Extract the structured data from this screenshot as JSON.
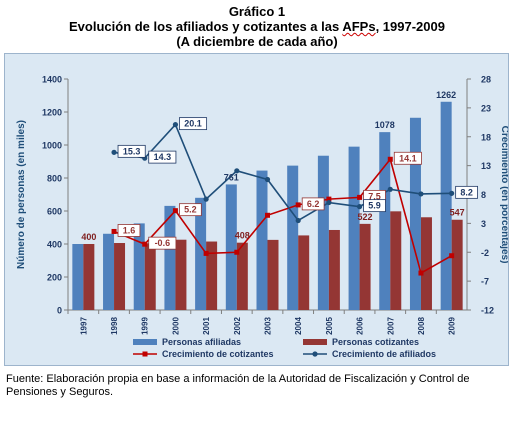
{
  "title_line1": "Gráfico 1",
  "title_line2_a": "Evolución de los afiliados y cotizantes a las ",
  "title_line2_b": "AFPs",
  "title_line2_c": ", 1997-2009",
  "title_line3": "(A diciembre de cada año)",
  "source": "Fuente: Elaboración propia en base a información de la Autoridad de Fiscalización y Control de Pensiones y Seguros.",
  "chart_data": {
    "type": "bar+line",
    "categories": [
      "1997",
      "1998",
      "1999",
      "2000",
      "2001",
      "2002",
      "2003",
      "2004",
      "2005",
      "2006",
      "2007",
      "2008",
      "2009"
    ],
    "bar_series": [
      {
        "name": "Personas afiliadas",
        "color": "#4f81bd",
        "values": [
          400,
          462,
          525,
          631,
          680,
          761,
          845,
          875,
          935,
          990,
          1078,
          1165,
          1262
        ]
      },
      {
        "name": "Personas cotizantes",
        "color": "#943634",
        "values": [
          400,
          406,
          404,
          426,
          415,
          408,
          425,
          452,
          485,
          522,
          598,
          562,
          547
        ]
      }
    ],
    "line_series": [
      {
        "name": "Crecimiento de cotizantes",
        "color": "#c00000",
        "values": [
          null,
          1.6,
          -0.6,
          5.2,
          -2.2,
          -2.0,
          4.4,
          6.2,
          7.2,
          7.5,
          14.1,
          -5.6,
          -2.6
        ]
      },
      {
        "name": "Crecimiento de afiliados",
        "color": "#1f4e79",
        "values": [
          null,
          15.3,
          14.3,
          20.1,
          7.2,
          12.1,
          10.6,
          3.5,
          6.6,
          5.9,
          8.9,
          8.1,
          8.2
        ]
      }
    ],
    "bar_labels": [
      {
        "index": 0,
        "series": 1,
        "text": "400"
      },
      {
        "index": 5,
        "series": 1,
        "text": "408"
      },
      {
        "index": 5,
        "series": 0,
        "text": "761"
      },
      {
        "index": 9,
        "series": 1,
        "text": "522"
      },
      {
        "index": 10,
        "series": 0,
        "text": "1078"
      },
      {
        "index": 12,
        "series": 0,
        "text": "1262"
      },
      {
        "index": 12,
        "series": 1,
        "text": "547"
      }
    ],
    "line_labels": [
      {
        "index": 1,
        "series": 0,
        "text": "1.6"
      },
      {
        "index": 2,
        "series": 0,
        "text": "-0.6"
      },
      {
        "index": 3,
        "series": 0,
        "text": "5.2"
      },
      {
        "index": 7,
        "series": 0,
        "text": "6.2"
      },
      {
        "index": 9,
        "series": 0,
        "text": "7.5"
      },
      {
        "index": 10,
        "series": 0,
        "text": "14.1"
      },
      {
        "index": 1,
        "series": 1,
        "text": "15.3"
      },
      {
        "index": 2,
        "series": 1,
        "text": "14.3"
      },
      {
        "index": 3,
        "series": 1,
        "text": "20.1"
      },
      {
        "index": 9,
        "series": 1,
        "text": "5.9"
      },
      {
        "index": 12,
        "series": 1,
        "text": "8.2"
      }
    ],
    "left_axis": {
      "label": "Número de personas (en miles)",
      "min": 0,
      "max": 1400,
      "ticks": [
        "0",
        "200",
        "400",
        "600",
        "800",
        "1000",
        "1200",
        "1400"
      ]
    },
    "right_axis": {
      "label": "Crecimiento (en porcentajes)",
      "min": -12,
      "max": 28,
      "ticks": [
        "-12",
        "-7",
        "-2",
        "3",
        "8",
        "13",
        "18",
        "23",
        "28"
      ]
    },
    "legend_position": "bottom",
    "grid": false
  }
}
